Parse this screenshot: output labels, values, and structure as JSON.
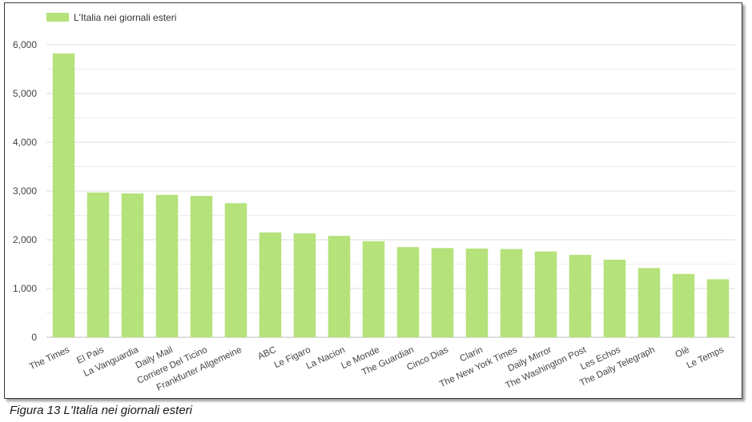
{
  "chart_data": {
    "type": "bar",
    "categories": [
      "The Times",
      "El Pais",
      "La Vanguardia",
      "Daily Mail",
      "Corriere Del Ticino",
      "Frankfurter Allgemeine",
      "ABC",
      "Le Figaro",
      "La Nacion",
      "Le Monde",
      "The Guardian",
      "Cinco Dias",
      "Clarin",
      "The New York Times",
      "Daily Mirror",
      "The Washington Post",
      "Les Echos",
      "The Daily Telegraph",
      "Olè",
      "Le Temps"
    ],
    "series": [
      {
        "name": "L'Italia nei giornali esteri",
        "values": [
          5820,
          2970,
          2950,
          2920,
          2900,
          2750,
          2150,
          2130,
          2080,
          1970,
          1850,
          1830,
          1820,
          1810,
          1760,
          1690,
          1590,
          1420,
          1300,
          1190
        ],
        "color": "#b5e27a"
      }
    ],
    "y_ticks": [
      "0",
      "1,000",
      "2,000",
      "3,000",
      "4,000",
      "5,000",
      "6,000"
    ],
    "ylim": [
      0,
      6000
    ],
    "grid": true,
    "legend_position": "top-left",
    "title": "",
    "xlabel": "",
    "ylabel": ""
  },
  "caption": "Figura 13 L'Italia nei giornali esteri"
}
